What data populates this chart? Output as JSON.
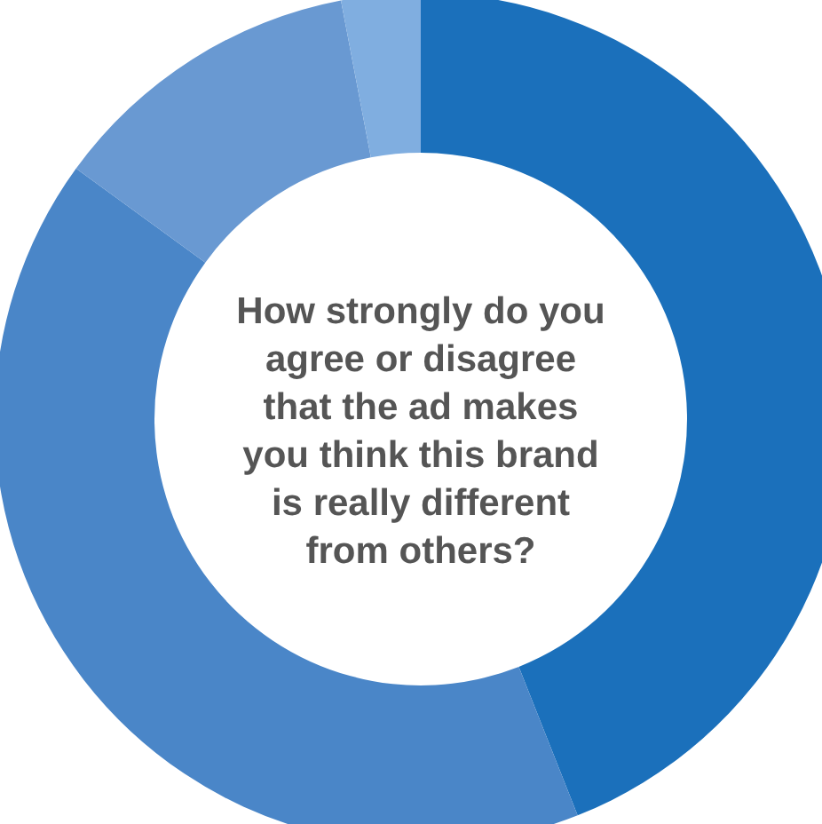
{
  "chart_data": {
    "type": "donut",
    "title": "How strongly do you agree or disagree that the ad makes you think this brand is really different from others?",
    "categories": [
      null,
      null,
      null,
      null
    ],
    "values": [
      44,
      41,
      12,
      3
    ],
    "colors": [
      "#1b70bb",
      "#4a86c8",
      "#6999d2",
      "#80aee0"
    ]
  }
}
